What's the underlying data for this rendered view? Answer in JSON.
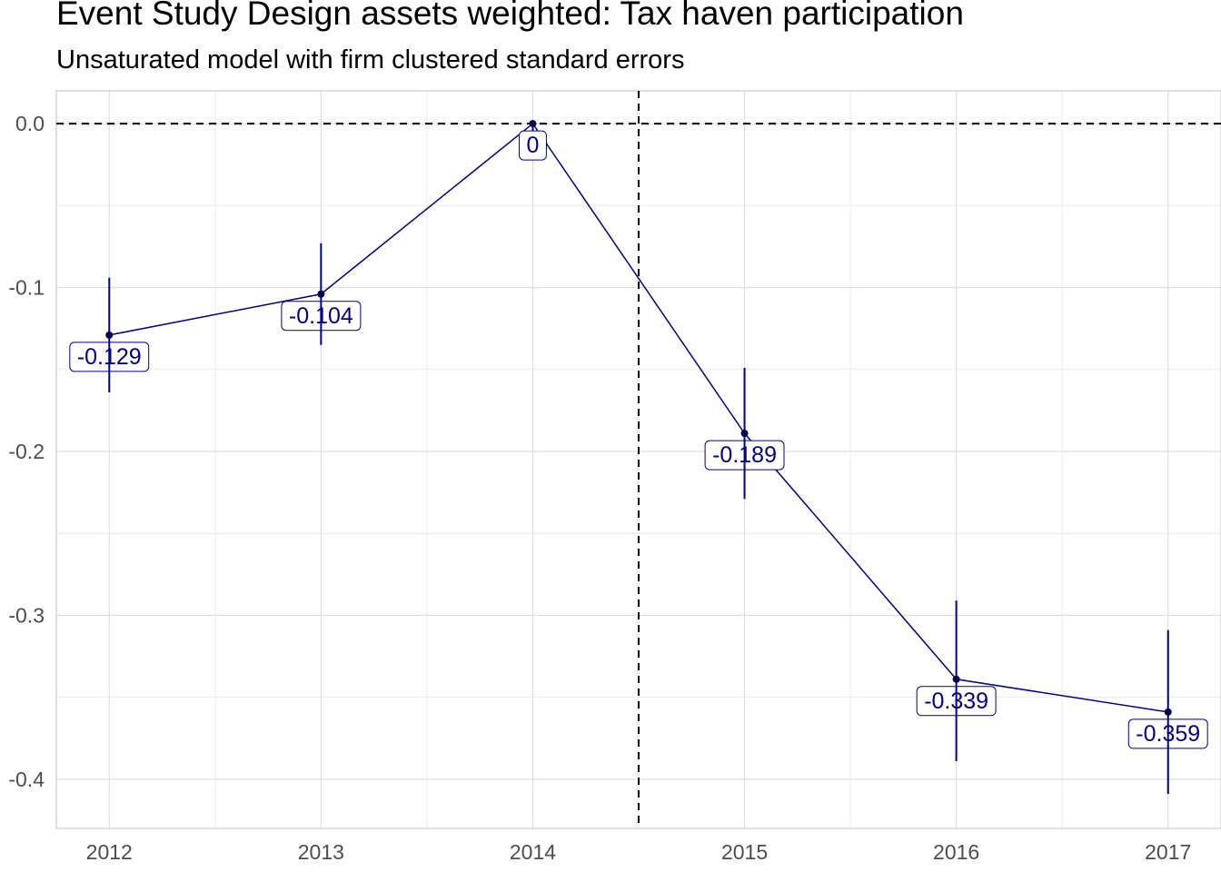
{
  "chart_data": {
    "type": "line",
    "title": "Event Study Design assets weighted: Tax haven participation",
    "subtitle": "Unsaturated model with firm clustered standard errors",
    "xlabel": "",
    "ylabel": "",
    "x": [
      2012,
      2013,
      2014,
      2015,
      2016,
      2017
    ],
    "x_tick_labels": [
      "2012",
      "2013",
      "2014",
      "2015",
      "2016",
      "2017"
    ],
    "xlim": [
      2011.75,
      2017.25
    ],
    "y_ticks": [
      0.0,
      -0.1,
      -0.2,
      -0.3,
      -0.4
    ],
    "y_tick_labels": [
      "0.0",
      "-0.1",
      "-0.2",
      "-0.3",
      "-0.4"
    ],
    "ylim": [
      -0.43,
      0.02
    ],
    "series": [
      {
        "values": [
          -0.129,
          -0.104,
          0,
          -0.189,
          -0.339,
          -0.359
        ],
        "lower": [
          -0.164,
          -0.135,
          0,
          -0.229,
          -0.389,
          -0.409
        ],
        "upper": [
          -0.094,
          -0.073,
          0,
          -0.149,
          -0.291,
          -0.309
        ],
        "labels": [
          "-0.129",
          "-0.104",
          "0",
          "-0.189",
          "-0.339",
          "-0.359"
        ],
        "color": "#00008b"
      }
    ],
    "reference_lines": {
      "horizontal_y": 0,
      "vertical_x": 2014.5,
      "style": "dashed",
      "color": "#000000"
    },
    "grid": true,
    "legend": "none"
  }
}
